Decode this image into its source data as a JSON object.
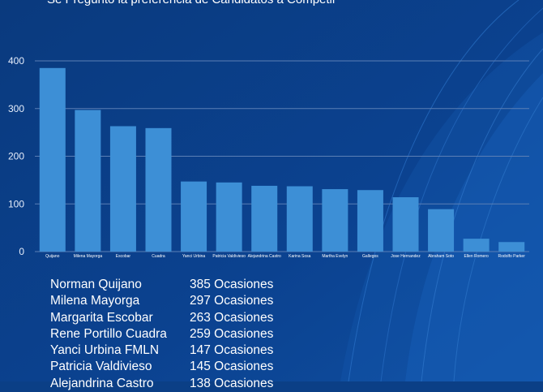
{
  "subtitle": "Se Preguntó la preferencia de Candidatos a Competir",
  "colors": {
    "background": "#0b3f86",
    "bar": "#3d8fd6",
    "grid": "#5b7fb5",
    "text": "#ffffff"
  },
  "chart_data": {
    "type": "bar",
    "categories": [
      "Quijano",
      "Milena Mayorga",
      "Escobar",
      "Cuadra",
      "Yanci Urbina",
      "Patricia Valdivieso",
      "Alejandrina Castro",
      "Karina Sosa",
      "Martha Evelyn",
      "Gallegos",
      "Jose Hernandez",
      "Abraham Soto",
      "Ellen Romero",
      "Rodolfo Parker"
    ],
    "values": [
      385,
      297,
      263,
      259,
      147,
      145,
      138,
      137,
      131,
      129,
      114,
      89,
      27,
      20
    ],
    "yticks": [
      "0",
      "100",
      "200",
      "300",
      "400"
    ],
    "ylim": [
      0,
      400
    ],
    "grid": true
  },
  "list": [
    {
      "name": "Norman Quijano",
      "count": "385 Ocasiones"
    },
    {
      "name": "Milena Mayorga",
      "count": "297 Ocasiones"
    },
    {
      "name": "Margarita Escobar",
      "count": "263 Ocasiones"
    },
    {
      "name": "Rene Portillo Cuadra",
      "count": "259 Ocasiones"
    },
    {
      "name": "Yanci Urbina FMLN",
      "count": "147 Ocasiones"
    },
    {
      "name": "Patricia Valdivieso",
      "count": "145 Ocasiones"
    },
    {
      "name": "Alejandrina Castro",
      "count": "138 Ocasiones"
    }
  ]
}
